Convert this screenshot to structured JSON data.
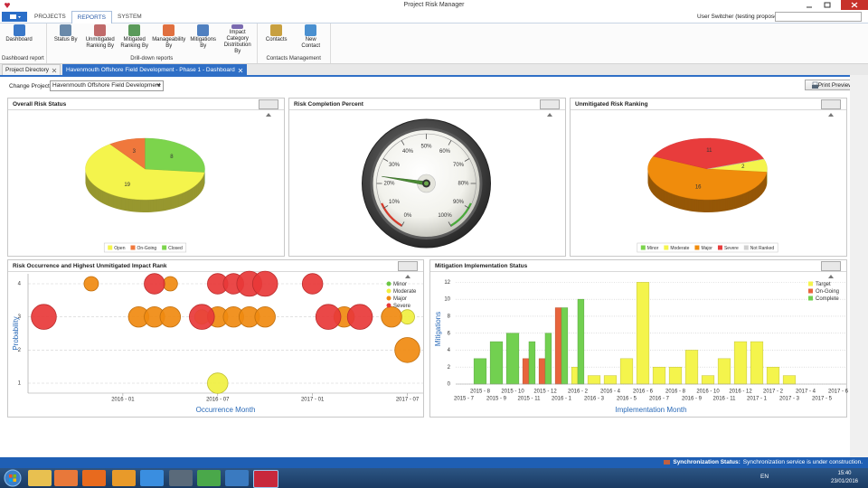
{
  "window": {
    "title": "Project Risk Manager"
  },
  "menu_tabs": [
    "PROJECTS",
    "REPORTS",
    "SYSTEM"
  ],
  "user_switcher": "User Switcher (testing propose)",
  "ribbon_groups": [
    {
      "label": "Dashboard report",
      "buttons": [
        "Dashboard"
      ]
    },
    {
      "label": "Drill-down reports",
      "buttons": [
        "Status By",
        "Unmitigated Ranking By",
        "Mitigated Ranking By",
        "Manageability By",
        "Mitigations By",
        "Impact Category Distribution By"
      ]
    },
    {
      "label": "Contacts Management",
      "buttons": [
        "Contacts",
        "New Contact"
      ]
    }
  ],
  "doc_tabs": [
    "Project Directory",
    "Havenmouth Offshore Field Development - Phase 1 - Dashboard"
  ],
  "toolbar": {
    "change_project_label": "Change Project:",
    "project": "Havenmouth Offshore Field Development",
    "print_preview": "Print Preview"
  },
  "status_bar": {
    "label": "Synchronization Status:",
    "message": "Synchronization service is under construction."
  },
  "taskbar": {
    "language": "EN",
    "time": "15:40",
    "date": "23/01/2016"
  },
  "chart_data": [
    {
      "type": "pie",
      "title": "Overall Risk Status",
      "categories": [
        "Open",
        "On-Going",
        "Closed"
      ],
      "values": [
        19,
        3,
        8
      ],
      "colors": [
        "#f4f44c",
        "#f0783c",
        "#7cd44c"
      ]
    },
    {
      "type": "gauge",
      "title": "Risk Completion Percent",
      "value": 23,
      "ylim": [
        0,
        100
      ],
      "yticks": [
        {
          "value": 0,
          "label": "0%"
        },
        {
          "value": 10,
          "label": "10%"
        },
        {
          "value": 20,
          "label": "20%"
        },
        {
          "value": 30,
          "label": "30%"
        },
        {
          "value": 40,
          "label": "40%"
        },
        {
          "value": 50,
          "label": "50%"
        },
        {
          "value": 60,
          "label": "60%"
        },
        {
          "value": 70,
          "label": "70%"
        },
        {
          "value": 80,
          "label": "80%"
        },
        {
          "value": 90,
          "label": "90%"
        },
        {
          "value": 100,
          "label": "100%"
        }
      ]
    },
    {
      "type": "pie",
      "title": "Unmitigated Risk Ranking",
      "categories": [
        "Minor",
        "Moderate",
        "Major",
        "Severe",
        "Not Ranked"
      ],
      "values": [
        0,
        2,
        16,
        11,
        0
      ],
      "colors": [
        "#7cd44c",
        "#f4f44c",
        "#f08c0c",
        "#e83c3c",
        "#d0d0d0"
      ]
    },
    {
      "type": "bubble",
      "title": "Risk Occurrence and Highest Unmitigated Impact Rank",
      "x_label": "Occurrence Month",
      "y_label": "Probability",
      "xlim": [
        "2015-07",
        "2017-08"
      ],
      "xticks": [
        {
          "value": "2016-01",
          "label": "2016 - 01"
        },
        {
          "value": "2016-07",
          "label": "2016 - 07"
        },
        {
          "value": "2017-01",
          "label": "2017 - 01"
        },
        {
          "value": "2017-07",
          "label": "2017 - 07"
        }
      ],
      "ylim": [
        0.7,
        4.3
      ],
      "yticks": [
        1,
        2,
        3,
        4
      ],
      "grid": true,
      "series": [
        {
          "name": "Minor",
          "color": "#6cc644",
          "x": [],
          "values": [],
          "sizes": []
        },
        {
          "name": "Moderate",
          "color": "#f0f040",
          "x": [
            "2016-06",
            "2017-07",
            "2016-07"
          ],
          "values": [
            3,
            3,
            1
          ],
          "sizes": [
            1,
            1,
            2
          ]
        },
        {
          "name": "Major",
          "color": "#f08a10",
          "x": [
            "2015-11",
            "2016-04",
            "2016-02",
            "2016-03",
            "2016-04",
            "2016-07",
            "2016-08",
            "2016-09",
            "2016-10",
            "2017-03",
            "2017-06",
            "2017-07"
          ],
          "values": [
            4,
            4,
            3,
            3,
            3,
            3,
            3,
            3,
            3,
            3,
            3,
            2
          ],
          "sizes": [
            1,
            1,
            2,
            2,
            2,
            2,
            2,
            2,
            2,
            2,
            2,
            3
          ]
        },
        {
          "name": "Severe",
          "color": "#e83838",
          "x": [
            "2016-03",
            "2016-07",
            "2016-08",
            "2016-09",
            "2016-10",
            "2017-01",
            "2015-08",
            "2016-06",
            "2017-02",
            "2017-04"
          ],
          "values": [
            4,
            4,
            4,
            4,
            4,
            4,
            3,
            3,
            3,
            3
          ],
          "sizes": [
            2,
            2,
            2,
            3,
            3,
            2,
            3,
            3,
            3,
            3
          ]
        }
      ]
    },
    {
      "type": "bar",
      "title": "Mitigation Implementation Status",
      "x_label": "Implementation Month",
      "y_label": "Mitigations",
      "categories": [
        "2015 - 7",
        "2015 - 8",
        "2015 - 9",
        "2015 - 10",
        "2015 - 11",
        "2015 - 12",
        "2016 - 1",
        "2016 - 2",
        "2016 - 3",
        "2016 - 4",
        "2016 - 5",
        "2016 - 6",
        "2016 - 7",
        "2016 - 8",
        "2016 - 9",
        "2016 - 10",
        "2016 - 11",
        "2016 - 12",
        "2017 - 1",
        "2017 - 2",
        "2017 - 3",
        "2017 - 4",
        "2017 - 5",
        "2017 - 6"
      ],
      "ylim": [
        0,
        13
      ],
      "yticks": [
        0,
        2,
        4,
        6,
        8,
        10,
        12
      ],
      "grid": true,
      "series": [
        {
          "name": "Target",
          "color": "#f4f44c",
          "values": [
            0,
            0,
            0,
            0,
            0,
            0,
            0,
            2,
            1,
            1,
            3,
            12,
            2,
            2,
            4,
            1,
            3,
            5,
            5,
            2,
            1,
            0,
            0,
            0
          ]
        },
        {
          "name": "On-Going",
          "color": "#e8643c",
          "values": [
            0,
            0,
            0,
            0,
            3,
            3,
            9,
            0,
            0,
            0,
            0,
            0,
            0,
            0,
            0,
            0,
            0,
            0,
            0,
            0,
            0,
            0,
            0,
            0
          ]
        },
        {
          "name": "Complete",
          "color": "#72d050",
          "values": [
            0,
            3,
            5,
            6,
            5,
            6,
            9,
            10,
            0,
            0,
            0,
            0,
            0,
            0,
            0,
            0,
            0,
            0,
            0,
            0,
            0,
            0,
            0,
            0
          ]
        }
      ]
    }
  ]
}
